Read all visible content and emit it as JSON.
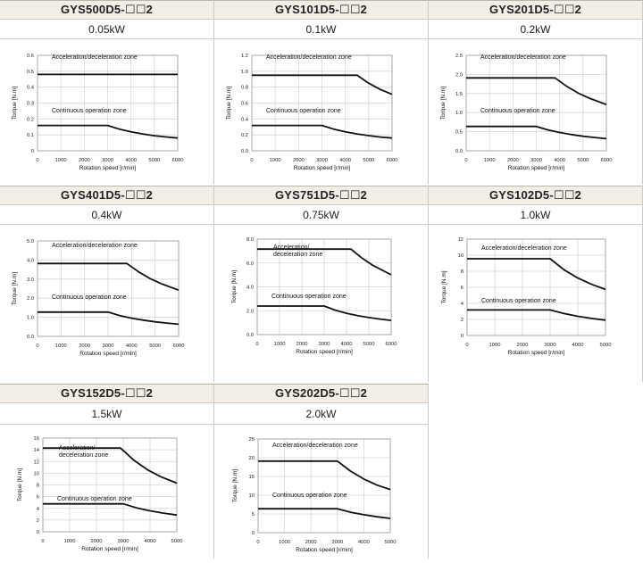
{
  "charts": [
    {
      "model": "GYS500D5-☐☐2",
      "power": "0.05kW",
      "chart_data": {
        "type": "line",
        "xlabel": "Rotation speed [r/min]",
        "ylabel": "Torque [N.m]",
        "xlim": [
          0,
          6000
        ],
        "ylim": [
          0,
          0.6
        ],
        "xticks": [
          "0",
          "1000",
          "2000",
          "3000",
          "4000",
          "5000",
          "6000"
        ],
        "yticks": [
          "0",
          "0.1",
          "0.2",
          "0.3",
          "0.4",
          "0.5",
          "0.6"
        ],
        "grid": true,
        "series": [
          {
            "name": "Acceleration/deceleration zone",
            "x": [
              0,
              6000
            ],
            "y": [
              0.48,
              0.48
            ],
            "label_lines": [
              "Acceleration/deceleration zone"
            ]
          },
          {
            "name": "Continuous operation zone",
            "x": [
              0,
              3000,
              3500,
              4000,
              4500,
              5000,
              5500,
              6000
            ],
            "y": [
              0.159,
              0.159,
              0.136,
              0.119,
              0.106,
              0.095,
              0.087,
              0.08
            ],
            "label_lines": [
              "Continuous operation zone"
            ]
          }
        ]
      }
    },
    {
      "model": "GYS101D5-☐☐2",
      "power": "0.1kW",
      "chart_data": {
        "type": "line",
        "xlabel": "Rotation speed [r/min]",
        "ylabel": "Torque [N.m]",
        "xlim": [
          0,
          6000
        ],
        "ylim": [
          0,
          1.2
        ],
        "xticks": [
          "0",
          "1000",
          "2000",
          "3000",
          "4000",
          "5000",
          "6000"
        ],
        "yticks": [
          "0.0",
          "0.2",
          "0.4",
          "0.6",
          "0.8",
          "1.0",
          "1.2"
        ],
        "grid": true,
        "series": [
          {
            "name": "Acceleration/deceleration zone",
            "x": [
              0,
              4500,
              5000,
              5500,
              6000
            ],
            "y": [
              0.95,
              0.95,
              0.85,
              0.77,
              0.71
            ],
            "label_lines": [
              "Acceleration/deceleration zone"
            ]
          },
          {
            "name": "Continuous operation zone",
            "x": [
              0,
              3000,
              3500,
              4000,
              4500,
              5000,
              5500,
              6000
            ],
            "y": [
              0.318,
              0.318,
              0.272,
              0.238,
              0.212,
              0.191,
              0.173,
              0.16
            ],
            "label_lines": [
              "Continuous operation zone"
            ]
          }
        ]
      }
    },
    {
      "model": "GYS201D5-☐☐2",
      "power": "0.2kW",
      "chart_data": {
        "type": "line",
        "xlabel": "Rotation speed [r/min]",
        "ylabel": "Torque [N.m]",
        "xlim": [
          0,
          6000
        ],
        "ylim": [
          0,
          2.5
        ],
        "xticks": [
          "0",
          "1000",
          "2000",
          "3000",
          "4000",
          "5000",
          "6000"
        ],
        "yticks": [
          "0.0",
          "0.5",
          "1.0",
          "1.5",
          "2.0",
          "2.5"
        ],
        "grid": true,
        "series": [
          {
            "name": "Acceleration/deceleration zone",
            "x": [
              0,
              3800,
              4300,
              4800,
              5300,
              6000
            ],
            "y": [
              1.91,
              1.91,
              1.69,
              1.51,
              1.37,
              1.21
            ],
            "label_lines": [
              "Acceleration/deceleration zone"
            ]
          },
          {
            "name": "Continuous operation zone",
            "x": [
              0,
              3000,
              3500,
              4000,
              4500,
              5000,
              5500,
              6000
            ],
            "y": [
              0.637,
              0.637,
              0.546,
              0.478,
              0.425,
              0.382,
              0.347,
              0.318
            ],
            "label_lines": [
              "Continuous operation zone"
            ]
          }
        ]
      }
    },
    {
      "model": "GYS401D5-☐☐2",
      "power": "0.4kW",
      "chart_data": {
        "type": "line",
        "xlabel": "Rotation speed [r/min]",
        "ylabel": "Torque [N.m]",
        "xlim": [
          0,
          6000
        ],
        "ylim": [
          0,
          5.0
        ],
        "xticks": [
          "0",
          "1000",
          "2000",
          "3000",
          "4000",
          "5000",
          "6000"
        ],
        "yticks": [
          "0.0",
          "1.0",
          "2.0",
          "3.0",
          "4.0",
          "5.0"
        ],
        "grid": true,
        "series": [
          {
            "name": "Acceleration/deceleration zone",
            "x": [
              0,
              3800,
              4300,
              4800,
              5300,
              6000
            ],
            "y": [
              3.82,
              3.82,
              3.38,
              3.02,
              2.74,
              2.42
            ],
            "label_lines": [
              "Acceleration/deceleration zone"
            ]
          },
          {
            "name": "Continuous operation zone",
            "x": [
              0,
              3000,
              3500,
              4000,
              4500,
              5000,
              5500,
              6000
            ],
            "y": [
              1.27,
              1.27,
              1.09,
              0.955,
              0.849,
              0.764,
              0.695,
              0.637
            ],
            "label_lines": [
              "Continuous operation zone"
            ]
          }
        ]
      }
    },
    {
      "model": "GYS751D5-☐☐2",
      "power": "0.75kW",
      "chart_data": {
        "type": "line",
        "xlabel": "Rotation speed [r/min]",
        "ylabel": "Torque [N.m]",
        "xlim": [
          0,
          6000
        ],
        "ylim": [
          0,
          8.0
        ],
        "xticks": [
          "0",
          "1000",
          "2000",
          "3000",
          "4000",
          "5000",
          "6000"
        ],
        "yticks": [
          "0.0",
          "2.0",
          "4.0",
          "6.0",
          "8.0"
        ],
        "grid": true,
        "series": [
          {
            "name": "Acceleration/deceleration zone",
            "x": [
              0,
              4200,
              4700,
              5200,
              6000
            ],
            "y": [
              7.16,
              7.16,
              6.4,
              5.78,
              5.01
            ],
            "label_lines": [
              "Acceleration/",
              "deceleration zone"
            ]
          },
          {
            "name": "Continuous operation zone",
            "x": [
              0,
              3000,
              3500,
              4000,
              4500,
              5000,
              5500,
              6000
            ],
            "y": [
              2.39,
              2.39,
              2.05,
              1.79,
              1.59,
              1.43,
              1.3,
              1.19
            ],
            "label_lines": [
              "Continuous operation zone"
            ]
          }
        ]
      }
    },
    {
      "model": "GYS102D5-☐☐2",
      "power": "1.0kW",
      "chart_data": {
        "type": "line",
        "xlabel": "Rotation speed [r/min]",
        "ylabel": "Torque [N.m]",
        "xlim": [
          0,
          5000
        ],
        "ylim": [
          0,
          12
        ],
        "xticks": [
          "0",
          "1000",
          "2000",
          "3000",
          "4000",
          "5000"
        ],
        "yticks": [
          "0",
          "2",
          "4",
          "6",
          "8",
          "10",
          "12"
        ],
        "grid": true,
        "series": [
          {
            "name": "Acceleration/deceleration zone",
            "x": [
              0,
              3000,
              3500,
              4000,
              4500,
              5000
            ],
            "y": [
              9.55,
              9.55,
              8.19,
              7.16,
              6.37,
              5.73
            ],
            "label_lines": [
              "Acceleration/deceleration zone"
            ]
          },
          {
            "name": "Continuous operation zone",
            "x": [
              0,
              3000,
              3500,
              4000,
              4500,
              5000
            ],
            "y": [
              3.18,
              3.18,
              2.73,
              2.39,
              2.12,
              1.91
            ],
            "label_lines": [
              "Continuous operation zone"
            ]
          }
        ]
      }
    },
    {
      "model": "GYS152D5-☐☐2",
      "power": "1.5kW",
      "chart_data": {
        "type": "line",
        "xlabel": "Rotation speed [r/min]",
        "ylabel": "Torque [N.m]",
        "xlim": [
          0,
          5000
        ],
        "ylim": [
          0,
          16
        ],
        "xticks": [
          "0",
          "1000",
          "2000",
          "3000",
          "4000",
          "5000"
        ],
        "yticks": [
          "0",
          "2",
          "4",
          "6",
          "8",
          "10",
          "12",
          "14",
          "16"
        ],
        "grid": true,
        "series": [
          {
            "name": "Acceleration/deceleration zone",
            "x": [
              0,
              2900,
              3400,
              3900,
              4400,
              5000
            ],
            "y": [
              14.3,
              14.3,
              12.2,
              10.6,
              9.4,
              8.3
            ],
            "label_lines": [
              "Acceleration/",
              "deceleration zone"
            ]
          },
          {
            "name": "Continuous operation zone",
            "x": [
              0,
              3000,
              3500,
              4000,
              4500,
              5000
            ],
            "y": [
              4.77,
              4.77,
              4.09,
              3.58,
              3.18,
              2.86
            ],
            "label_lines": [
              "Continuous operation zone"
            ]
          }
        ]
      }
    },
    {
      "model": "GYS202D5-☐☐2",
      "power": "2.0kW",
      "chart_data": {
        "type": "line",
        "xlabel": "Rotation speed [r/min]",
        "ylabel": "Torque [N.m]",
        "xlim": [
          0,
          5000
        ],
        "ylim": [
          0,
          25
        ],
        "xticks": [
          "0",
          "1000",
          "2000",
          "3000",
          "4000",
          "5000"
        ],
        "yticks": [
          "0",
          "5",
          "10",
          "15",
          "20",
          "25"
        ],
        "grid": true,
        "series": [
          {
            "name": "Acceleration/deceleration zone",
            "x": [
              0,
              3000,
              3500,
              4000,
              4500,
              5000
            ],
            "y": [
              19.1,
              19.1,
              16.4,
              14.3,
              12.7,
              11.5
            ],
            "label_lines": [
              "Acceleration/deceleration zone"
            ]
          },
          {
            "name": "Continuous operation zone",
            "x": [
              0,
              3000,
              3500,
              4000,
              4500,
              5000
            ],
            "y": [
              6.37,
              6.37,
              5.46,
              4.78,
              4.25,
              3.82
            ],
            "label_lines": [
              "Continuous operation zone"
            ]
          }
        ]
      }
    }
  ]
}
